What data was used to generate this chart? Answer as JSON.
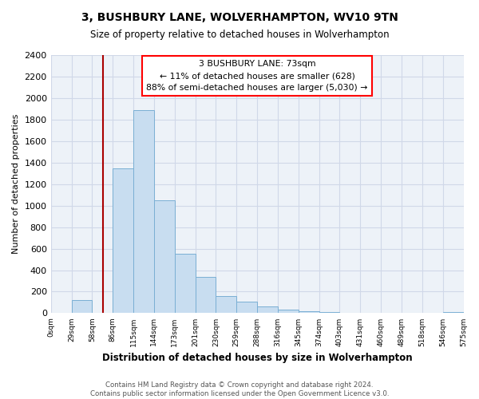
{
  "title": "3, BUSHBURY LANE, WOLVERHAMPTON, WV10 9TN",
  "subtitle": "Size of property relative to detached houses in Wolverhampton",
  "xlabel": "Distribution of detached houses by size in Wolverhampton",
  "ylabel": "Number of detached properties",
  "bar_color": "#c8ddf0",
  "bar_edge_color": "#7aafd4",
  "bin_labels": [
    "0sqm",
    "29sqm",
    "58sqm",
    "86sqm",
    "115sqm",
    "144sqm",
    "173sqm",
    "201sqm",
    "230sqm",
    "259sqm",
    "288sqm",
    "316sqm",
    "345sqm",
    "374sqm",
    "403sqm",
    "431sqm",
    "460sqm",
    "489sqm",
    "518sqm",
    "546sqm",
    "575sqm"
  ],
  "bar_heights": [
    0,
    125,
    0,
    1350,
    1890,
    1050,
    550,
    340,
    160,
    105,
    60,
    30,
    15,
    8,
    3,
    0,
    0,
    0,
    0,
    12
  ],
  "ylim": [
    0,
    2400
  ],
  "yticks": [
    0,
    200,
    400,
    600,
    800,
    1000,
    1200,
    1400,
    1600,
    1800,
    2000,
    2200,
    2400
  ],
  "vline_color": "#aa0000",
  "annotation_title": "3 BUSHBURY LANE: 73sqm",
  "annotation_line1": "← 11% of detached houses are smaller (628)",
  "annotation_line2": "88% of semi-detached houses are larger (5,030) →",
  "footer_line1": "Contains HM Land Registry data © Crown copyright and database right 2024.",
  "footer_line2": "Contains public sector information licensed under the Open Government Licence v3.0.",
  "grid_color": "#d0d8e8",
  "ax_bg_color": "#edf2f8"
}
